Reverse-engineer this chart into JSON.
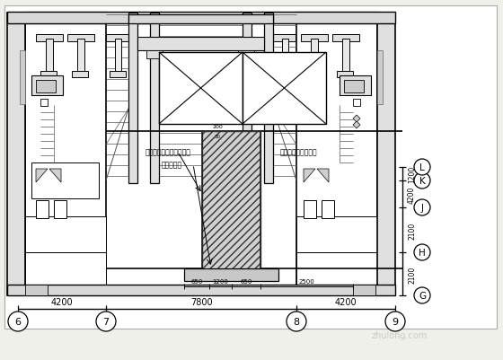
{
  "bg_color": "#f0f0eb",
  "white": "#ffffff",
  "black": "#000000",
  "gray_dark": "#888888",
  "gray_med": "#cccccc",
  "gray_light": "#e8e8e8",
  "watermark": "zhulong.com",
  "bottom_labels": [
    "6",
    "7",
    "8",
    "9"
  ],
  "right_labels": [
    "G",
    "H",
    "J",
    "K",
    "L"
  ],
  "bottom_dims": [
    "4200",
    "7800",
    "4200"
  ],
  "right_dims": [
    "2100",
    "2100",
    "4200",
    "1200"
  ],
  "sub_dims": [
    "650",
    "1200",
    "650",
    "2500"
  ],
  "ann1": "此区域混凝土板人工剖凿",
  "ann2": "新增梁位置",
  "ann3": "十五层以下全都拆除"
}
